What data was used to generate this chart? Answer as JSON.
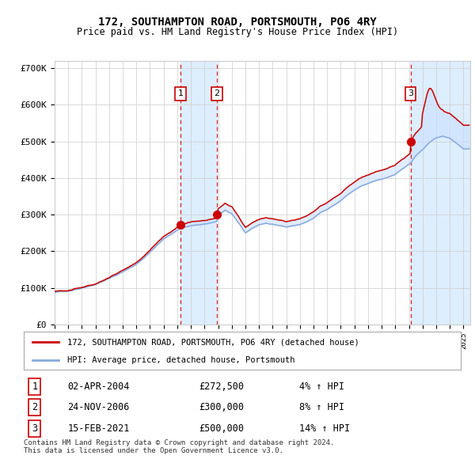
{
  "title": "172, SOUTHAMPTON ROAD, PORTSMOUTH, PO6 4RY",
  "subtitle": "Price paid vs. HM Land Registry's House Price Index (HPI)",
  "xlim_start": 1995.0,
  "xlim_end": 2025.5,
  "ylim": [
    0,
    720000
  ],
  "yticks": [
    0,
    100000,
    200000,
    300000,
    400000,
    500000,
    600000,
    700000
  ],
  "ytick_labels": [
    "£0",
    "£100K",
    "£200K",
    "£300K",
    "£400K",
    "£500K",
    "£600K",
    "£700K"
  ],
  "transactions": [
    {
      "num": 1,
      "date_str": "02-APR-2004",
      "date_x": 2004.25,
      "price": 272500,
      "pct": "4%",
      "dir": "↑"
    },
    {
      "num": 2,
      "date_str": "24-NOV-2006",
      "date_x": 2006.9,
      "price": 300000,
      "pct": "8%",
      "dir": "↑"
    },
    {
      "num": 3,
      "date_str": "15-FEB-2021",
      "date_x": 2021.12,
      "price": 500000,
      "pct": "14%",
      "dir": "↑"
    }
  ],
  "legend_line1": "172, SOUTHAMPTON ROAD, PORTSMOUTH, PO6 4RY (detached house)",
  "legend_line2": "HPI: Average price, detached house, Portsmouth",
  "footer1": "Contains HM Land Registry data © Crown copyright and database right 2024.",
  "footer2": "This data is licensed under the Open Government Licence v3.0.",
  "line_color_red": "#cc0000",
  "line_color_blue": "#88aadd",
  "fill_color_between": "#cce0ff",
  "shading_color": "#ddeeff",
  "grid_color": "#cccccc",
  "bg_color": "#ffffff",
  "dashed_line_color": "#cc0000",
  "marker_color": "#cc0000",
  "hpi_key_values": {
    "1995.0": 88000,
    "1996.0": 91000,
    "1997.0": 100000,
    "1998.0": 110000,
    "1999.0": 125000,
    "2000.0": 142000,
    "2001.0": 163000,
    "2002.0": 195000,
    "2003.0": 232000,
    "2004.0": 255000,
    "2004.25": 262000,
    "2005.0": 267000,
    "2006.0": 275000,
    "2006.9": 278000,
    "2007.0": 295000,
    "2007.5": 310000,
    "2008.0": 300000,
    "2008.5": 275000,
    "2009.0": 248000,
    "2009.5": 260000,
    "2010.0": 270000,
    "2010.5": 275000,
    "2011.0": 272000,
    "2011.5": 268000,
    "2012.0": 265000,
    "2012.5": 268000,
    "2013.0": 272000,
    "2013.5": 280000,
    "2014.0": 290000,
    "2014.5": 305000,
    "2015.0": 315000,
    "2015.5": 328000,
    "2016.0": 340000,
    "2016.5": 355000,
    "2017.0": 368000,
    "2017.5": 378000,
    "2018.0": 385000,
    "2018.5": 393000,
    "2019.0": 398000,
    "2019.5": 405000,
    "2020.0": 412000,
    "2020.5": 425000,
    "2021.0": 438000,
    "2021.12": 440000,
    "2021.5": 460000,
    "2022.0": 478000,
    "2022.5": 498000,
    "2023.0": 510000,
    "2023.5": 515000,
    "2024.0": 510000,
    "2024.5": 495000,
    "2025.0": 480000
  }
}
